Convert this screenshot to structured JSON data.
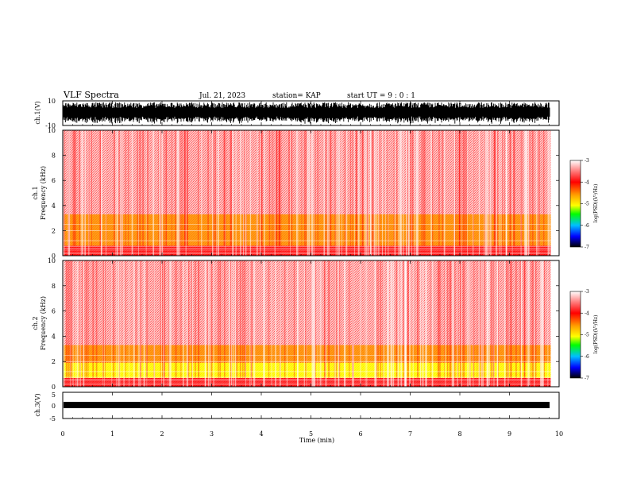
{
  "header": {
    "title": "VLF Spectra",
    "date": "Jul. 21, 2023",
    "station": "station= KAP",
    "start": "start UT =  9 : 0 : 1"
  },
  "chart_data": [
    {
      "type": "line",
      "panel": "ch1-waveform",
      "ylabel": "ch.1(V)",
      "yticks": [
        "10",
        "-10"
      ],
      "ylim": [
        -10,
        10
      ],
      "xlim": [
        0,
        10
      ],
      "note": "dense noise waveform spanning roughly -8 to +8 V"
    },
    {
      "type": "heatmap",
      "panel": "ch1-spectrogram",
      "ylabel": "ch.1\nFrequency (kHz)",
      "ylabel_lines": [
        "ch.1",
        "Frequency (kHz)"
      ],
      "yticks": [
        "0",
        "2",
        "4",
        "6",
        "8",
        "10"
      ],
      "ylim": [
        0,
        10
      ],
      "xlim": [
        0,
        9.83
      ],
      "bands": [
        {
          "from_khz": 0.0,
          "to_khz": 0.8,
          "level": -3.8
        },
        {
          "from_khz": 0.8,
          "to_khz": 3.3,
          "level": -4.6
        },
        {
          "from_khz": 3.3,
          "to_khz": 10.0,
          "level": -3.6
        }
      ]
    },
    {
      "type": "heatmap",
      "panel": "ch2-spectrogram",
      "ylabel": "ch.2\nFrequency (kHz)",
      "ylabel_lines": [
        "ch.2",
        "Frequency (kHz)"
      ],
      "yticks": [
        "0",
        "2",
        "4",
        "6",
        "8",
        "10"
      ],
      "ylim": [
        0,
        10
      ],
      "xlim": [
        0,
        9.83
      ],
      "bands": [
        {
          "from_khz": 0.0,
          "to_khz": 0.7,
          "level": -3.8
        },
        {
          "from_khz": 0.7,
          "to_khz": 1.9,
          "level": -5.2
        },
        {
          "from_khz": 1.9,
          "to_khz": 3.3,
          "level": -4.5
        },
        {
          "from_khz": 3.3,
          "to_khz": 10.0,
          "level": -3.6
        }
      ]
    },
    {
      "type": "line",
      "panel": "ch3-waveform",
      "ylabel": "ch.3(V)",
      "yticks": [
        "5",
        "0",
        "-5"
      ],
      "ylim": [
        -5,
        5
      ],
      "xlim": [
        0,
        10
      ],
      "note": "flat band near +1 V"
    }
  ],
  "xaxis": {
    "label": "Time (min)",
    "ticks": [
      "0",
      "1",
      "2",
      "3",
      "4",
      "5",
      "6",
      "7",
      "8",
      "9",
      "10"
    ],
    "range": [
      0,
      10
    ]
  },
  "colorbar": {
    "label": "log(PSD)(V²/Hz)",
    "ticks": [
      "-3",
      "-4",
      "-5",
      "-6",
      "-7"
    ],
    "range": [
      -7,
      -3
    ],
    "colors": [
      "#ffffff",
      "#ff0000",
      "#ffa000",
      "#ffff00",
      "#00ff00",
      "#00c0ff",
      "#0000ff",
      "#000000"
    ]
  }
}
